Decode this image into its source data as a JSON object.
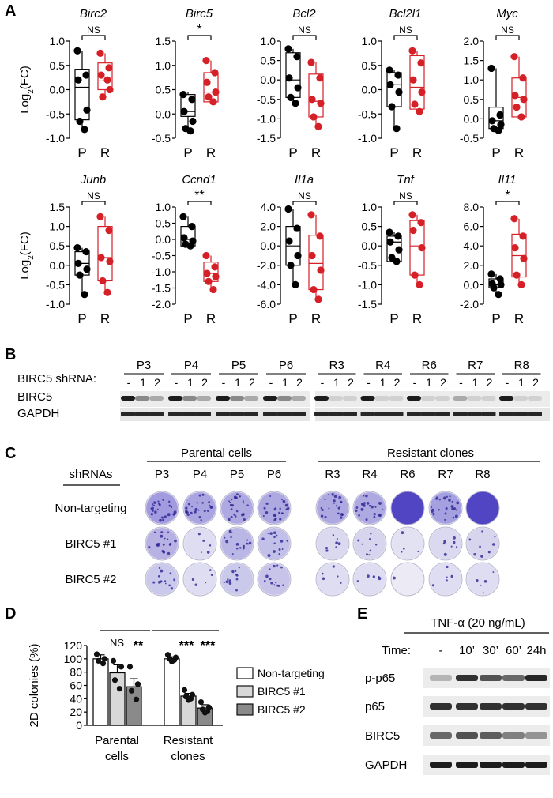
{
  "panels": {
    "A": "A",
    "B": "B",
    "C": "C",
    "D": "D",
    "E": "E"
  },
  "colors": {
    "parental": "#000000",
    "resistant": "#d62027",
    "dark_bar": "#8a8a8a",
    "light_bar": "#d8d8d8",
    "plate_purple": "#5a4fc9"
  },
  "panel_a": {
    "ylabel": "Log2(FC)",
    "group_labels": [
      "P",
      "R"
    ],
    "charts": [
      {
        "gene": "Birc2",
        "sig": "NS",
        "yticks": [
          "1.0",
          "0.5",
          "0.0",
          "-0.5",
          "-1.0"
        ],
        "ylim": [
          -1.0,
          1.0
        ],
        "P": {
          "box": [
            -0.62,
            0.05,
            0.42
          ],
          "whisk": [
            -0.82,
            0.8
          ],
          "pts": [
            0.8,
            0.3,
            0.2,
            -0.42,
            -0.65,
            -0.82
          ]
        },
        "R": {
          "box": [
            0.0,
            0.18,
            0.55
          ],
          "whisk": [
            -0.15,
            0.75
          ],
          "pts": [
            0.75,
            0.45,
            0.3,
            0.0,
            -0.15,
            0.2
          ]
        }
      },
      {
        "gene": "Birc5",
        "sig": "*",
        "yticks": [
          "1.5",
          "1.0",
          "0.5",
          "0.0",
          "-0.5"
        ],
        "ylim": [
          -0.5,
          1.5
        ],
        "P": {
          "box": [
            -0.05,
            0.05,
            0.4
          ],
          "whisk": [
            -0.35,
            0.45
          ],
          "pts": [
            0.4,
            0.3,
            0.05,
            -0.15,
            -0.3,
            -0.35
          ]
        },
        "R": {
          "box": [
            0.25,
            0.45,
            0.85
          ],
          "whisk": [
            0.25,
            1.1
          ],
          "pts": [
            1.1,
            0.85,
            0.65,
            0.45,
            0.35,
            0.25
          ]
        }
      },
      {
        "gene": "Bcl2",
        "sig": "NS",
        "yticks": [
          "1.0",
          "0.5",
          "0.0",
          "-0.5",
          "-1.0",
          "-1.5"
        ],
        "ylim": [
          -1.5,
          1.0
        ],
        "P": {
          "box": [
            -0.45,
            0.0,
            0.7
          ],
          "whisk": [
            -0.6,
            0.8
          ],
          "pts": [
            0.8,
            0.6,
            0.05,
            -0.2,
            -0.45,
            -0.6
          ]
        },
        "R": {
          "box": [
            -0.95,
            -0.55,
            0.15
          ],
          "whisk": [
            -1.2,
            0.45
          ],
          "pts": [
            0.45,
            0.05,
            -0.5,
            -0.6,
            -0.95,
            -1.2
          ]
        }
      },
      {
        "gene": "Bcl2l1",
        "sig": "NS",
        "yticks": [
          "1.0",
          "0.5",
          "0.0",
          "-0.5",
          "-1.0"
        ],
        "ylim": [
          -1.0,
          1.0
        ],
        "P": {
          "box": [
            -0.35,
            0.1,
            0.35
          ],
          "whisk": [
            -0.8,
            0.4
          ],
          "pts": [
            0.4,
            0.3,
            0.1,
            -0.05,
            -0.35,
            -0.8
          ]
        },
        "R": {
          "box": [
            -0.4,
            0.05,
            0.7
          ],
          "whisk": [
            -0.45,
            0.8
          ],
          "pts": [
            0.8,
            0.55,
            0.2,
            -0.05,
            -0.3,
            -0.45
          ]
        }
      },
      {
        "gene": "Myc",
        "sig": "NS",
        "yticks": [
          "2.0",
          "1.5",
          "1.0",
          "0.5",
          "0.0",
          "-0.5"
        ],
        "ylim": [
          -0.5,
          2.0
        ],
        "P": {
          "box": [
            -0.25,
            -0.05,
            0.3
          ],
          "whisk": [
            -0.3,
            1.3
          ],
          "pts": [
            1.3,
            0.1,
            -0.05,
            -0.15,
            -0.25,
            -0.3
          ]
        },
        "R": {
          "box": [
            0.05,
            0.55,
            1.05
          ],
          "whisk": [
            0.05,
            1.6
          ],
          "pts": [
            1.6,
            1.05,
            0.6,
            0.5,
            0.3,
            0.05
          ]
        }
      },
      {
        "gene": "Junb",
        "sig": "NS",
        "yticks": [
          "1.5",
          "1.0",
          "0.5",
          "0.0",
          "-0.5",
          "-1.0"
        ],
        "ylim": [
          -1.0,
          1.5
        ],
        "P": {
          "box": [
            -0.25,
            0.05,
            0.35
          ],
          "whisk": [
            -0.75,
            0.45
          ],
          "pts": [
            0.45,
            0.35,
            0.05,
            -0.1,
            -0.25,
            -0.75
          ]
        },
        "R": {
          "box": [
            -0.4,
            0.2,
            1.0
          ],
          "whisk": [
            -0.7,
            1.25
          ],
          "pts": [
            1.25,
            0.9,
            0.2,
            0.1,
            -0.4,
            -0.7
          ]
        }
      },
      {
        "gene": "Ccnd1",
        "sig": "**",
        "yticks": [
          "1.0",
          "0.5",
          "0.0",
          "-0.5",
          "-1.0",
          "-1.5",
          "-2.0"
        ],
        "ylim": [
          -2.0,
          1.0
        ],
        "P": {
          "box": [
            -0.2,
            0.0,
            0.4
          ],
          "whisk": [
            -0.2,
            0.7
          ],
          "pts": [
            0.7,
            0.4,
            0.05,
            -0.05,
            -0.15,
            -0.2
          ]
        },
        "R": {
          "box": [
            -1.3,
            -1.05,
            -0.7
          ],
          "whisk": [
            -1.55,
            -0.5
          ],
          "pts": [
            -0.5,
            -0.85,
            -1.05,
            -1.15,
            -1.3,
            -1.55
          ]
        }
      },
      {
        "gene": "Il1a",
        "sig": "NS",
        "yticks": [
          "4.0",
          "2.0",
          "0.0",
          "-2.0",
          "-4.0",
          "-6.0"
        ],
        "ylim": [
          -6.0,
          4.0
        ],
        "P": {
          "box": [
            -2.0,
            0.0,
            2.0
          ],
          "whisk": [
            -4.0,
            3.8
          ],
          "pts": [
            3.8,
            1.8,
            0.5,
            -1.0,
            -2.0,
            -4.0
          ]
        },
        "R": {
          "box": [
            -4.5,
            -1.8,
            1.1
          ],
          "whisk": [
            -5.5,
            3.2
          ],
          "pts": [
            3.2,
            1.0,
            -1.0,
            -2.5,
            -4.5,
            -5.5
          ]
        }
      },
      {
        "gene": "Tnf",
        "sig": "NS",
        "yticks": [
          "1.0",
          "0.5",
          "0.0",
          "-0.5",
          "-1.0",
          "-1.5"
        ],
        "ylim": [
          -1.5,
          1.0
        ],
        "P": {
          "box": [
            -0.4,
            0.1,
            0.25
          ],
          "whisk": [
            -0.4,
            0.35
          ],
          "pts": [
            0.35,
            0.25,
            0.1,
            -0.1,
            -0.3,
            -0.4
          ]
        },
        "R": {
          "box": [
            -0.75,
            0.0,
            0.65
          ],
          "whisk": [
            -1.0,
            0.8
          ],
          "pts": [
            0.8,
            0.6,
            0.4,
            -0.05,
            -0.75,
            -1.0
          ]
        }
      },
      {
        "gene": "Il11",
        "sig": "*",
        "yticks": [
          "8.0",
          "6.0",
          "4.0",
          "2.0",
          "0.0",
          "-2.0"
        ],
        "ylim": [
          -2.0,
          8.0
        ],
        "P": {
          "box": [
            -0.3,
            0.0,
            0.6
          ],
          "whisk": [
            -1.0,
            1.1
          ],
          "pts": [
            1.1,
            0.6,
            0.1,
            0.0,
            -0.3,
            -1.0
          ]
        },
        "R": {
          "box": [
            0.8,
            3.0,
            5.2
          ],
          "whisk": [
            0.0,
            6.8
          ],
          "pts": [
            6.8,
            5.0,
            3.8,
            2.7,
            1.0,
            0.0
          ]
        }
      }
    ]
  },
  "panel_b": {
    "shrna_label": "BIRC5 shRNA:",
    "lanes": [
      "-",
      "1",
      "2"
    ],
    "parental": [
      "P3",
      "P4",
      "P5",
      "P6"
    ],
    "resistant": [
      "R3",
      "R4",
      "R6",
      "R7",
      "R8"
    ],
    "rows": [
      "BIRC5",
      "GAPDH"
    ]
  },
  "panel_c": {
    "parental_header": "Parental cells",
    "resistant_header": "Resistant clones",
    "shrnas_header": "shRNAs",
    "row_labels": [
      "Non-targeting",
      "BIRC5 #1",
      "BIRC5 #2"
    ],
    "parental": [
      "P3",
      "P4",
      "P5",
      "P6"
    ],
    "resistant": [
      "R3",
      "R4",
      "R6",
      "R7",
      "R8"
    ]
  },
  "panel_d": {
    "chart_data": {
      "type": "bar",
      "ylabel": "2D colonies (%)",
      "ylim": [
        0,
        120
      ],
      "yticks": [
        "120",
        "100",
        "80",
        "60",
        "40",
        "20",
        "0"
      ],
      "categories": [
        "Parental\ncells",
        "Resistant\nclones"
      ],
      "category_lines": [
        [
          "Parental",
          "cells"
        ],
        [
          "Resistant",
          "clones"
        ]
      ],
      "series": [
        {
          "name": "Non-targeting",
          "values": [
            100,
            100
          ],
          "err": [
            6,
            3
          ],
          "pts": [
            [
              107,
              100,
              97,
              93
            ],
            [
              106,
              102,
              100,
              98,
              96
            ]
          ]
        },
        {
          "name": "BIRC5 #1",
          "values": [
            79,
            44
          ],
          "err": [
            12,
            4
          ],
          "pts": [
            [
              97,
              88,
              68,
              55
            ],
            [
              53,
              46,
              43,
              40,
              38
            ]
          ]
        },
        {
          "name": "BIRC5 #2",
          "values": [
            58,
            26
          ],
          "err": [
            12,
            5
          ],
          "pts": [
            [
              88,
              62,
              52,
              39
            ],
            [
              35,
              27,
              24,
              21,
              19
            ]
          ]
        }
      ],
      "sig": {
        "parental": [
          "NS",
          "**"
        ],
        "resistant": [
          "***",
          "***"
        ]
      }
    }
  },
  "panel_e": {
    "treatment": "TNF-α (20 ng/mL)",
    "time_label": "Time:",
    "times": [
      "-",
      "10’",
      "30’",
      "60’",
      "24h"
    ],
    "rows": [
      "p-p65",
      "p65",
      "BIRC5",
      "GAPDH"
    ]
  }
}
